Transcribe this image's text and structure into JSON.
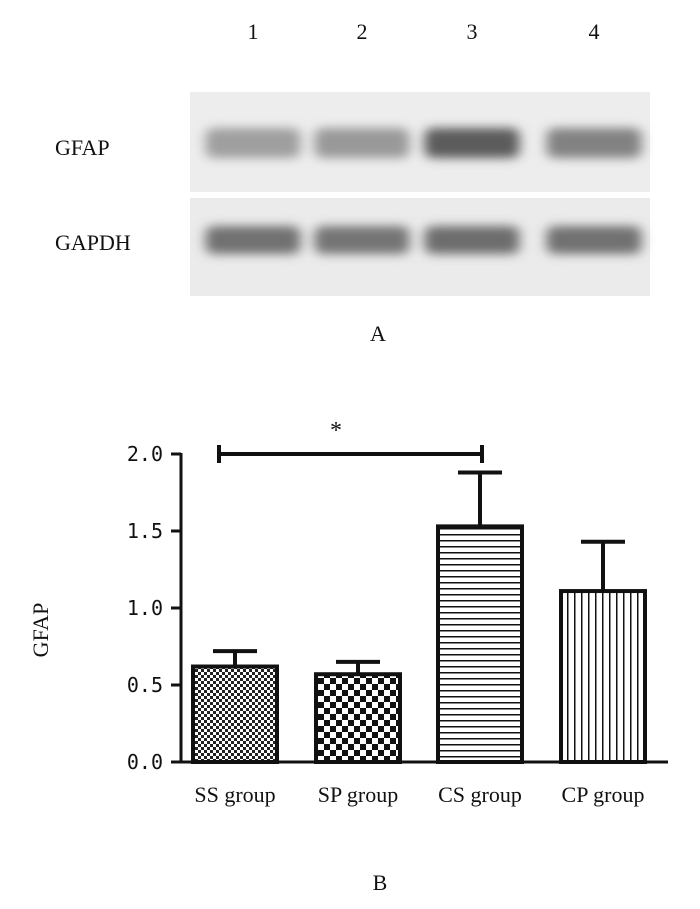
{
  "blot": {
    "lanes": [
      "1",
      "2",
      "3",
      "4"
    ],
    "bands": [
      {
        "label": "GFAP",
        "intensity": [
          0.45,
          0.48,
          0.85,
          0.62
        ]
      },
      {
        "label": "GAPDH",
        "intensity": [
          0.72,
          0.7,
          0.74,
          0.72
        ]
      }
    ],
    "panel_label": "A"
  },
  "chart_data": {
    "type": "bar",
    "categories": [
      "SS group",
      "SP group",
      "CS group",
      "CP group"
    ],
    "values": [
      0.62,
      0.57,
      1.53,
      1.11
    ],
    "errors": [
      0.1,
      0.08,
      0.35,
      0.32
    ],
    "patterns": [
      "fine-checker",
      "coarse-checker",
      "horizontal-lines",
      "vertical-lines"
    ],
    "ylabel": "GFAP",
    "ylim": [
      0.0,
      2.0
    ],
    "yticks": [
      "0.0",
      "0.5",
      "1.0",
      "1.5",
      "2.0"
    ],
    "significance": {
      "from": "SS group",
      "to": "CS group",
      "label": "*"
    },
    "panel_label": "B"
  }
}
